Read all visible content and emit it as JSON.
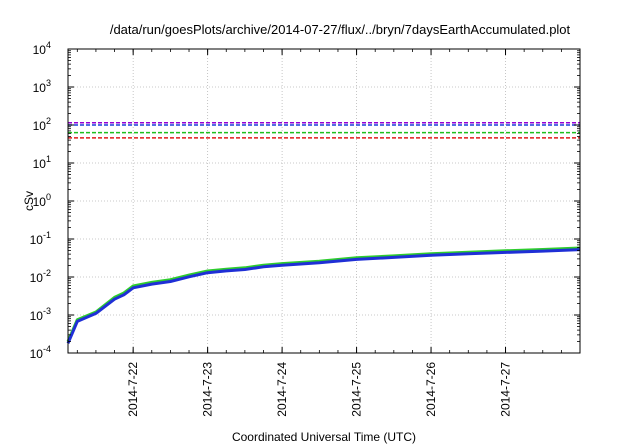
{
  "chart_data": {
    "type": "line",
    "title": "/data/run/goesPlots/archive/2014-07-27/flux/../bryn/7daysEarthAccumulated.plot",
    "xlabel": "Coordinated Universal Time (UTC)",
    "ylabel": "cSv",
    "y_scale": "log",
    "ylim": [
      0.0001,
      10000
    ],
    "xlim": [
      "2014-07-21T03:00",
      "2014-07-28T00:00"
    ],
    "grid": true,
    "x_ticks": [
      "2014-7-22",
      "2014-7-23",
      "2014-7-24",
      "2014-7-25",
      "2014-7-26",
      "2014-7-27"
    ],
    "y_ticks": [
      {
        "base": "10",
        "exp": "-4",
        "value": 0.0001
      },
      {
        "base": "10",
        "exp": "-3",
        "value": 0.001
      },
      {
        "base": "10",
        "exp": "-2",
        "value": 0.01
      },
      {
        "base": "10",
        "exp": "-1",
        "value": 0.1
      },
      {
        "base": "10",
        "exp": "0",
        "value": 1
      },
      {
        "base": "10",
        "exp": "1",
        "value": 10
      },
      {
        "base": "10",
        "exp": "2",
        "value": 100
      },
      {
        "base": "10",
        "exp": "3",
        "value": 1000
      },
      {
        "base": "10",
        "exp": "4",
        "value": 10000
      }
    ],
    "thresholds": [
      {
        "value": 115,
        "color": "#9400d3"
      },
      {
        "value": 100,
        "color": "#1a3fd8"
      },
      {
        "value": 63,
        "color": "#1fbf1f"
      },
      {
        "value": 46,
        "color": "#e01b1b"
      }
    ],
    "series": [
      {
        "color": "#2ecc2e",
        "x": [
          "2014-07-21T03:00",
          "2014-07-21T06:00",
          "2014-07-21T12:00",
          "2014-07-21T18:00",
          "2014-07-21T21:00",
          "2014-07-22T00:00",
          "2014-07-22T06:00",
          "2014-07-22T12:00",
          "2014-07-22T18:00",
          "2014-07-23T00:00",
          "2014-07-23T06:00",
          "2014-07-23T12:00",
          "2014-07-23T18:00",
          "2014-07-24T00:00",
          "2014-07-24T12:00",
          "2014-07-25T00:00",
          "2014-07-25T12:00",
          "2014-07-26T00:00",
          "2014-07-26T12:00",
          "2014-07-27T00:00",
          "2014-07-27T12:00",
          "2014-07-28T00:00"
        ],
        "values": [
          0.0002,
          0.00075,
          0.0012,
          0.0029,
          0.0038,
          0.0058,
          0.0072,
          0.0085,
          0.0112,
          0.0144,
          0.016,
          0.0175,
          0.0205,
          0.0225,
          0.026,
          0.032,
          0.036,
          0.041,
          0.045,
          0.049,
          0.053,
          0.058
        ]
      },
      {
        "color": "#1f2fd6",
        "x": [
          "2014-07-21T03:00",
          "2014-07-21T06:00",
          "2014-07-21T12:00",
          "2014-07-21T18:00",
          "2014-07-21T21:00",
          "2014-07-22T00:00",
          "2014-07-22T06:00",
          "2014-07-22T12:00",
          "2014-07-22T18:00",
          "2014-07-23T00:00",
          "2014-07-23T06:00",
          "2014-07-23T12:00",
          "2014-07-23T18:00",
          "2014-07-24T00:00",
          "2014-07-24T12:00",
          "2014-07-25T00:00",
          "2014-07-25T12:00",
          "2014-07-26T00:00",
          "2014-07-26T12:00",
          "2014-07-27T00:00",
          "2014-07-27T12:00",
          "2014-07-28T00:00"
        ],
        "values": [
          0.00018,
          0.00068,
          0.0011,
          0.0026,
          0.0034,
          0.0052,
          0.0065,
          0.0076,
          0.0101,
          0.013,
          0.0145,
          0.0158,
          0.0186,
          0.0204,
          0.0236,
          0.029,
          0.0327,
          0.0372,
          0.0408,
          0.0445,
          0.048,
          0.0525
        ]
      }
    ]
  }
}
